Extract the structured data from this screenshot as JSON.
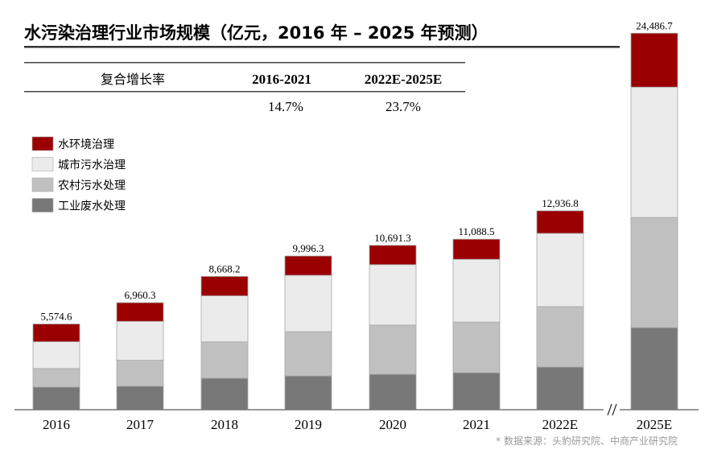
{
  "chart_data": {
    "type": "bar",
    "stacked": true,
    "title": "水污染治理行业市场规模（亿元，2016 年 – 2025 年预测）",
    "categories": [
      "2016",
      "2017",
      "2018",
      "2019",
      "2020",
      "2021",
      "2022E",
      "2025E"
    ],
    "series": [
      {
        "name": "工业废水处理",
        "color": "#787878",
        "values": [
          1470,
          1529,
          2049,
          2198,
          2306,
          2406,
          2776,
          5337
        ]
      },
      {
        "name": "农村污水处理",
        "color": "#c0c0c0",
        "values": [
          1208,
          1687,
          2364,
          2879,
          3197,
          3295,
          3928,
          7168
        ]
      },
      {
        "name": "城市污水治理",
        "color": "#ebebeb",
        "values": [
          1742,
          2531,
          2994,
          3664,
          3931,
          4080,
          4766,
          8476
        ]
      },
      {
        "name": "水环境治理",
        "color": "#9b0000",
        "values": [
          1154.6,
          1213.3,
          1261.2,
          1255.3,
          1257.3,
          1307.5,
          1466.8,
          3505.7
        ]
      }
    ],
    "totals": [
      "5,574.6",
      "6,960.3",
      "8,668.2",
      "9,996.3",
      "10,691.3",
      "11,088.5",
      "12,936.8",
      "24,486.7"
    ],
    "legend_order": [
      "水环境治理",
      "城市污水治理",
      "农村污水处理",
      "工业废水处理"
    ],
    "legend_placement": "left",
    "axis_break_between": [
      "2022E",
      "2025E"
    ],
    "ylim": [
      0,
      24500
    ],
    "grid": false,
    "y_axis_visible": false
  },
  "cagr_table": {
    "row_label": "复合增长率",
    "headers": [
      "2016-2021",
      "2022E-2025E"
    ],
    "values": [
      "14.7%",
      "23.7%"
    ]
  },
  "source_note": "* 数据来源：头豹研究院、中商产业研究院"
}
